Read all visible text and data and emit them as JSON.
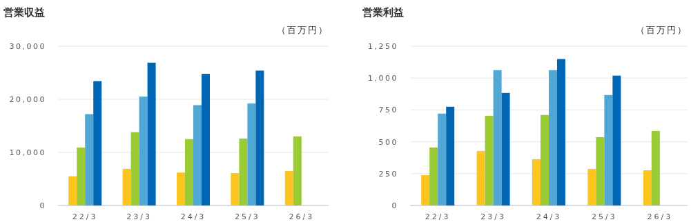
{
  "chart_data": [
    {
      "type": "bar",
      "title": "営業収益",
      "ylabel": "（百万円）",
      "categories": [
        "22/3",
        "23/3",
        "24/3",
        "25/3",
        "26/3"
      ],
      "series": [
        {
          "color": "#fcc51f",
          "values": [
            5500,
            6900,
            6200,
            6100,
            6500
          ]
        },
        {
          "color": "#9aca34",
          "values": [
            10900,
            13800,
            12500,
            12600,
            13000
          ]
        },
        {
          "color": "#52a8d4",
          "values": [
            17200,
            20500,
            18900,
            19200,
            null
          ]
        },
        {
          "color": "#0066b3",
          "values": [
            23400,
            26900,
            24800,
            25400,
            null
          ]
        }
      ],
      "ylim": [
        0,
        30000
      ],
      "yticks": [
        0,
        {
          "value": 10000,
          "label": "10,000"
        },
        {
          "value": 20000,
          "label": "20,000"
        },
        {
          "value": 30000,
          "label": "30,000"
        }
      ],
      "grid": "y"
    },
    {
      "type": "bar",
      "title": "営業利益",
      "ylabel": "（百万円）",
      "categories": [
        "22/3",
        "23/3",
        "24/3",
        "25/3",
        "26/3"
      ],
      "series": [
        {
          "color": "#fcc51f",
          "values": [
            238,
            428,
            363,
            287,
            276
          ]
        },
        {
          "color": "#9aca34",
          "values": [
            455,
            704,
            710,
            536,
            585
          ]
        },
        {
          "color": "#52a8d4",
          "values": [
            721,
            1062,
            1062,
            867,
            null
          ]
        },
        {
          "color": "#0066b3",
          "values": [
            775,
            883,
            1149,
            1019,
            null
          ]
        }
      ],
      "ylim": [
        0,
        1250
      ],
      "yticks": [
        0,
        250,
        500,
        750,
        {
          "value": 1000,
          "label": "1,000"
        },
        {
          "value": 1250,
          "label": "1,250"
        }
      ],
      "grid": "y"
    }
  ]
}
